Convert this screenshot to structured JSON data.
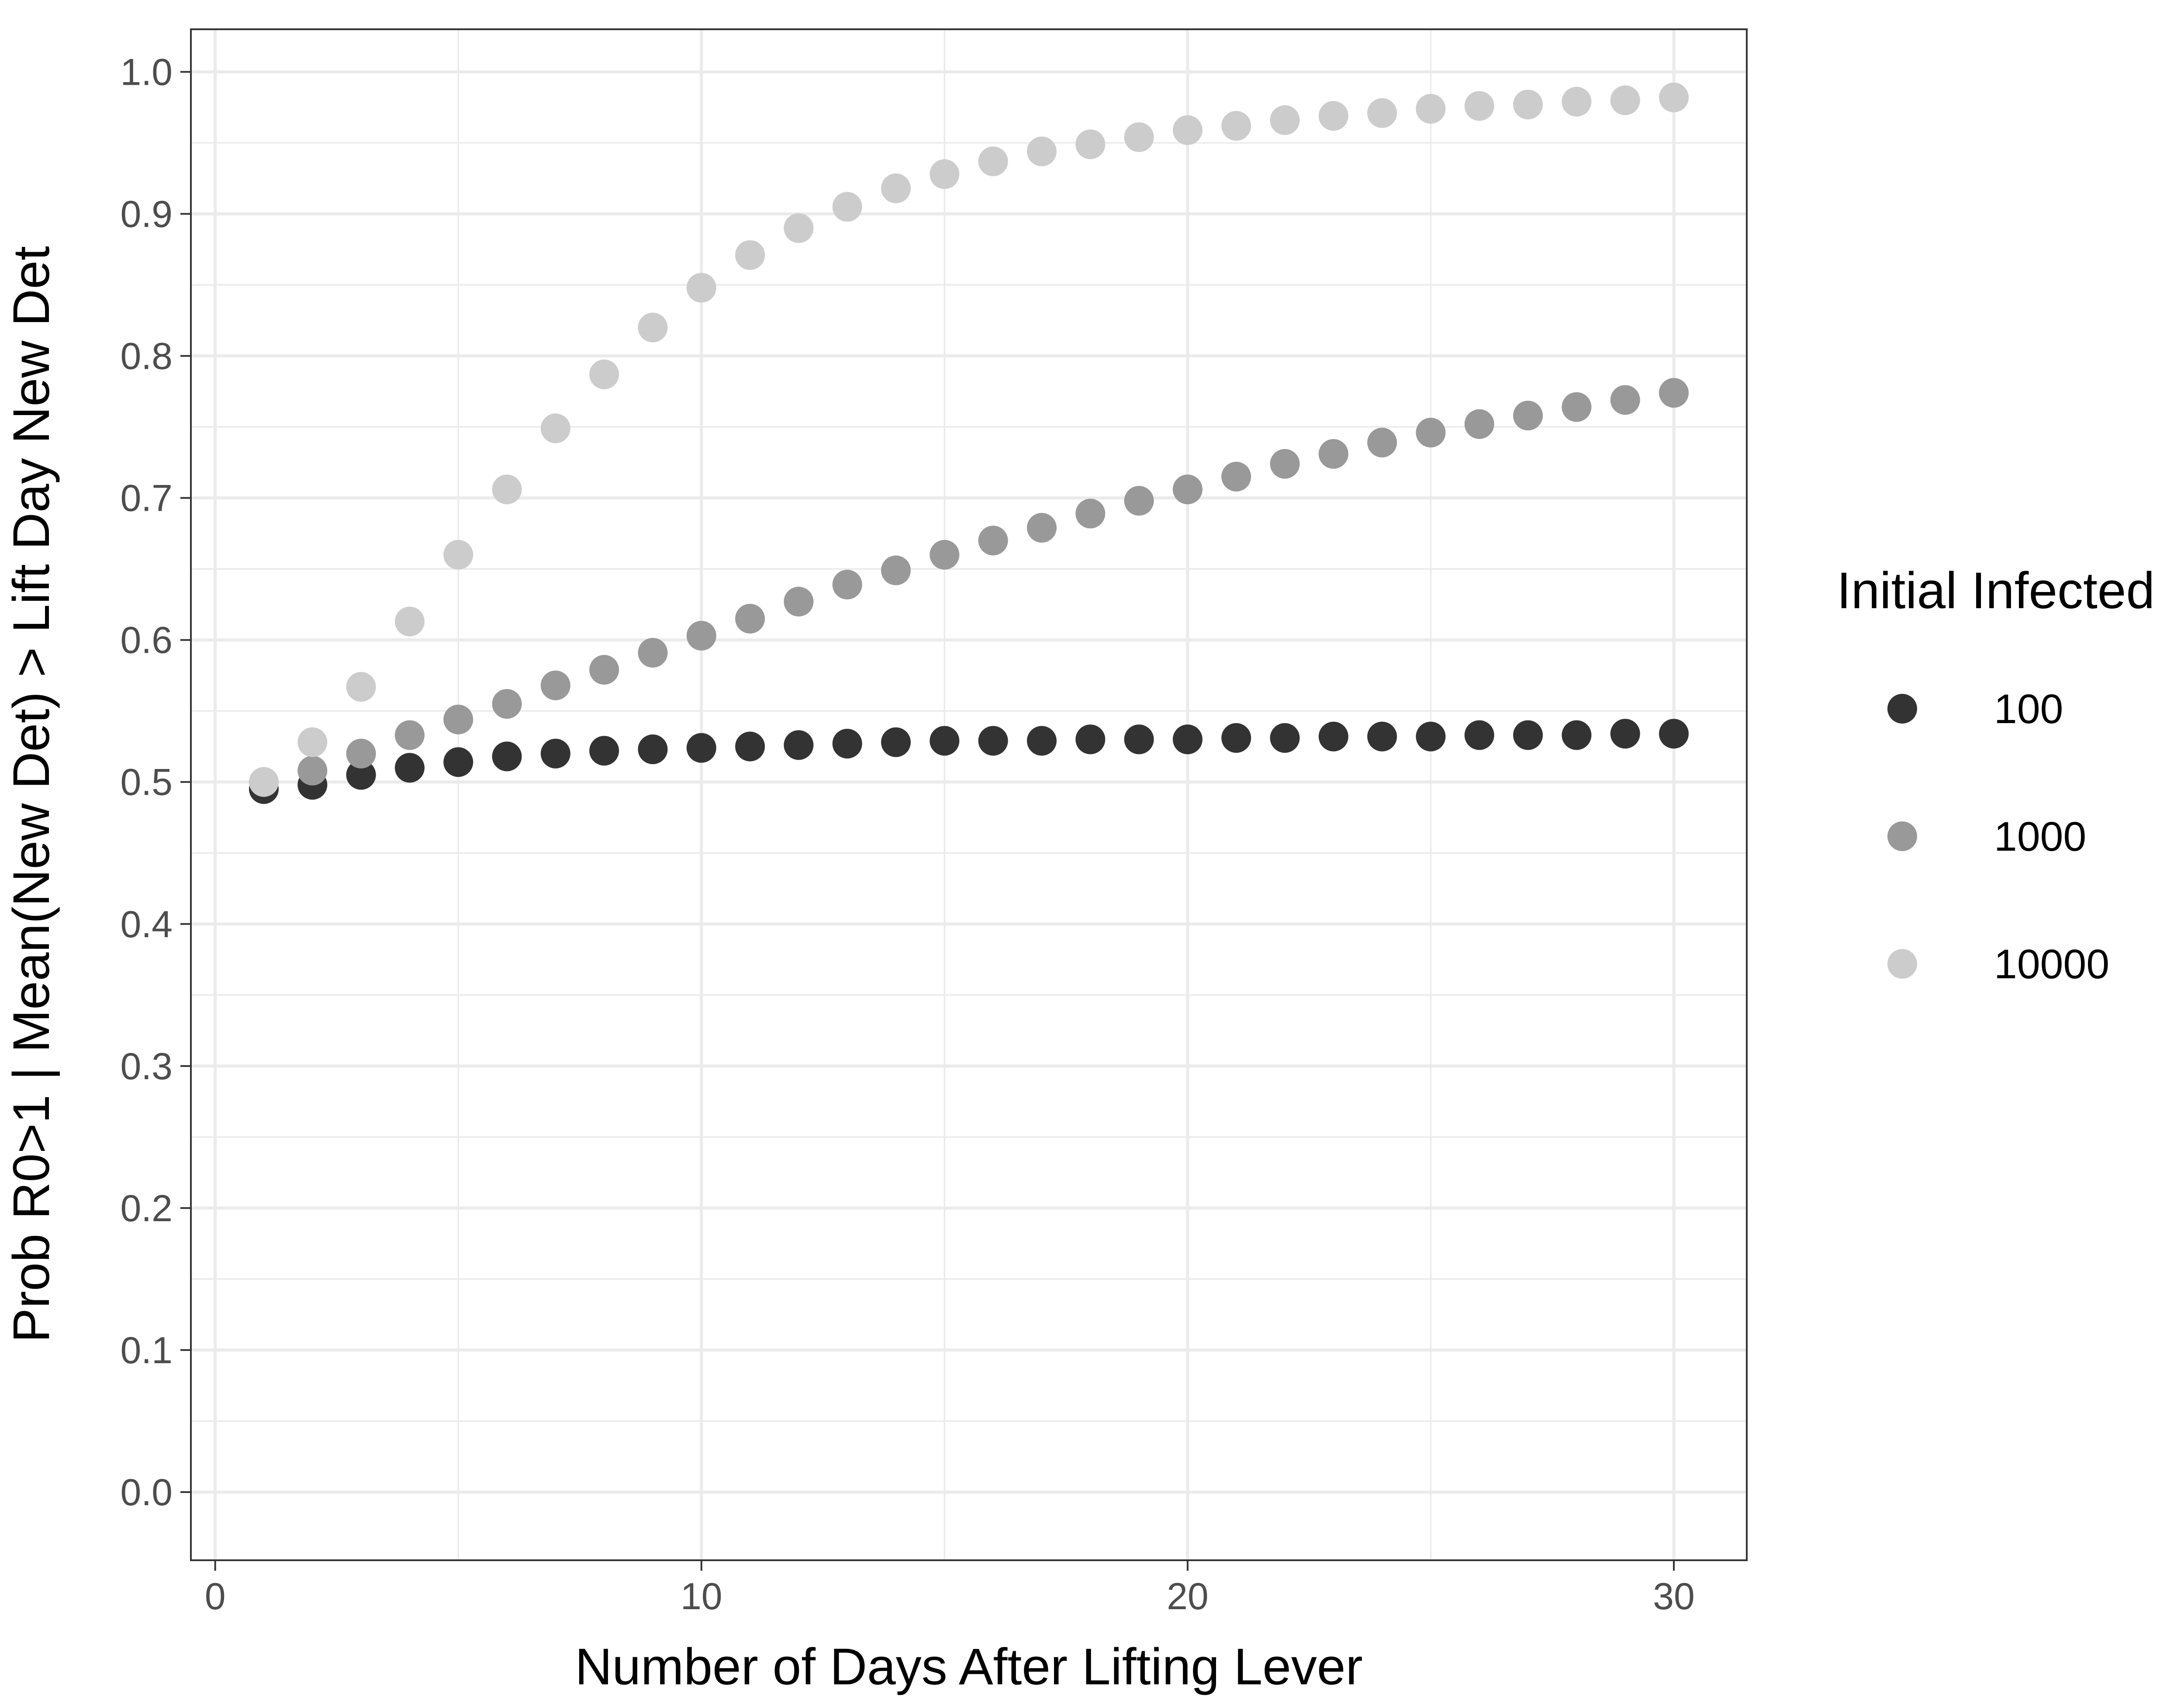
{
  "chart_data": {
    "type": "scatter",
    "title": "",
    "xlabel": "Number of Days After Lifting Lever",
    "ylabel": "Prob R0>1 | Mean(New Det) > Lift Day New Det",
    "xlim": [
      -0.5,
      31.5
    ],
    "ylim": [
      -0.048,
      1.03
    ],
    "x_ticks": [
      0,
      10,
      20,
      30
    ],
    "y_ticks": [
      0.0,
      0.1,
      0.2,
      0.3,
      0.4,
      0.5,
      0.6,
      0.7,
      0.8,
      0.9,
      1.0
    ],
    "x_tick_labels": [
      "0",
      "10",
      "20",
      "30"
    ],
    "y_tick_labels": [
      "0.0",
      "0.1",
      "0.2",
      "0.3",
      "0.4",
      "0.5",
      "0.6",
      "0.7",
      "0.8",
      "0.9",
      "1.0"
    ],
    "x_minor_ticks": [
      5,
      15,
      25
    ],
    "y_minor_ticks": [
      0.05,
      0.15,
      0.25,
      0.35,
      0.45,
      0.55,
      0.65,
      0.75,
      0.85,
      0.95
    ],
    "grid": true,
    "legend": {
      "title": "Initial Infected",
      "position": "right"
    },
    "x": [
      1,
      2,
      3,
      4,
      5,
      6,
      7,
      8,
      9,
      10,
      11,
      12,
      13,
      14,
      15,
      16,
      17,
      18,
      19,
      20,
      21,
      22,
      23,
      24,
      25,
      26,
      27,
      28,
      29,
      30
    ],
    "series": [
      {
        "name": "100",
        "color": "#333333",
        "values": [
          0.495,
          0.498,
          0.505,
          0.51,
          0.514,
          0.518,
          0.52,
          0.522,
          0.523,
          0.524,
          0.525,
          0.526,
          0.527,
          0.528,
          0.529,
          0.529,
          0.529,
          0.53,
          0.53,
          0.53,
          0.531,
          0.531,
          0.532,
          0.532,
          0.532,
          0.533,
          0.533,
          0.533,
          0.534,
          0.534
        ]
      },
      {
        "name": "1000",
        "color": "#999999",
        "values": [
          0.5,
          0.508,
          0.52,
          0.533,
          0.544,
          0.555,
          0.568,
          0.579,
          0.591,
          0.603,
          0.615,
          0.627,
          0.639,
          0.649,
          0.66,
          0.67,
          0.679,
          0.689,
          0.698,
          0.706,
          0.715,
          0.724,
          0.731,
          0.739,
          0.746,
          0.752,
          0.758,
          0.764,
          0.769,
          0.774
        ]
      },
      {
        "name": "10000",
        "color": "#cccccc",
        "values": [
          0.5,
          0.528,
          0.567,
          0.613,
          0.66,
          0.706,
          0.749,
          0.787,
          0.82,
          0.848,
          0.871,
          0.89,
          0.905,
          0.918,
          0.928,
          0.937,
          0.944,
          0.949,
          0.954,
          0.959,
          0.962,
          0.966,
          0.969,
          0.971,
          0.974,
          0.976,
          0.977,
          0.979,
          0.98,
          0.982
        ]
      }
    ]
  }
}
